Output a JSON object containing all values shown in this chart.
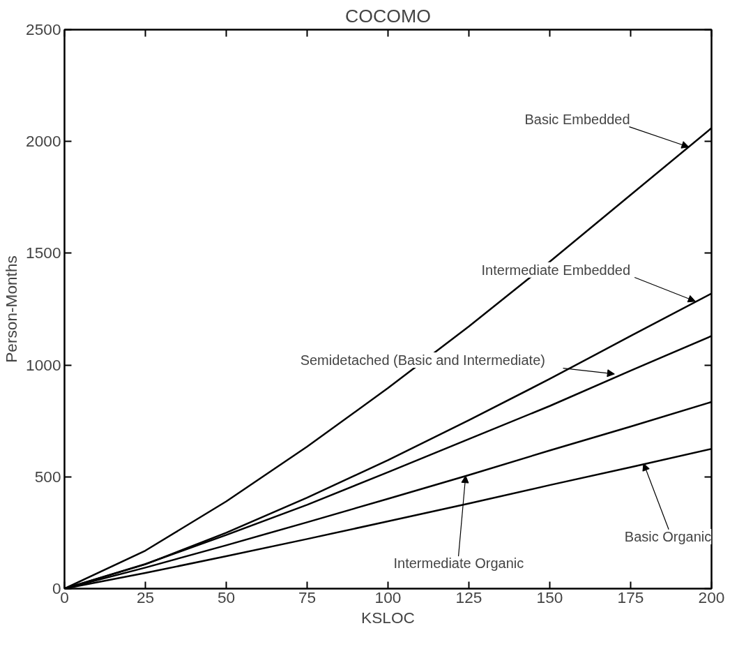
{
  "chart_data": {
    "type": "line",
    "title": "COCOMO",
    "xlabel": "KSLOC",
    "ylabel": "Person-Months",
    "x": [
      0,
      25,
      50,
      75,
      100,
      125,
      150,
      175,
      200
    ],
    "series": [
      {
        "color": "#000000",
        "values": [
          0,
          170,
          390,
          635,
          897,
          1173,
          1462,
          1761,
          2060
        ]
      },
      {
        "color": "#000000",
        "values": [
          0,
          109,
          250,
          407,
          575,
          753,
          938,
          1130,
          1320
        ]
      },
      {
        "color": "#000000",
        "values": [
          0,
          110,
          240,
          375,
          521,
          669,
          817,
          975,
          1130
        ]
      },
      {
        "color": "#000000",
        "values": [
          0,
          94,
          194,
          297,
          402,
          508,
          618,
          725,
          835
        ]
      },
      {
        "color": "#000000",
        "values": [
          0,
          70,
          145,
          222,
          301,
          381,
          463,
          543,
          625
        ]
      }
    ],
    "annotations": [
      {
        "text": "Basic Embedded",
        "x": 193,
        "y": 1975
      },
      {
        "text": "Intermediate Embedded",
        "x": 195,
        "y": 1285
      },
      {
        "text": "Semidetached (Basic and Intermediate)",
        "x": 170,
        "y": 960
      },
      {
        "text": "Intermediate Organic",
        "x": 124,
        "y": 505
      },
      {
        "text": "Basic Organic",
        "x": 179,
        "y": 560
      }
    ],
    "xlim": [
      0,
      200
    ],
    "ylim": [
      0,
      2500
    ],
    "xticks": [
      0,
      25,
      50,
      75,
      100,
      125,
      150,
      175,
      200
    ],
    "yticks": [
      0,
      500,
      1000,
      1500,
      2000,
      2500
    ],
    "grid": false,
    "marker": "none",
    "line_style": "solid"
  }
}
